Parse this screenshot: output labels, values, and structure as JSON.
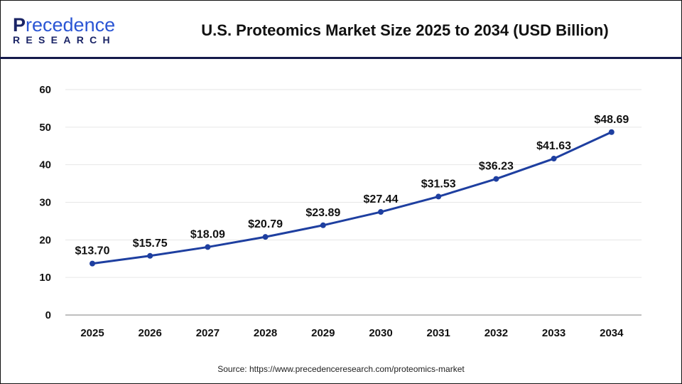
{
  "header": {
    "logo_text": "Precedence Research",
    "logo_line1_initial": "P",
    "logo_line1_rest": "recedence",
    "logo_line2": "RESEARCH",
    "title": "U.S. Proteomics Market Size 2025 to 2034 (USD Billion)"
  },
  "source": "Source: https://www.precedenceresearch.com/proteomics-market",
  "colors": {
    "line": "#1e3fa0",
    "grid": "#e6e6e6",
    "header_rule": "#141a4a"
  },
  "chart_data": {
    "type": "line",
    "title": "U.S. Proteomics Market Size 2025 to 2034 (USD Billion)",
    "categories": [
      "2025",
      "2026",
      "2027",
      "2028",
      "2029",
      "2030",
      "2031",
      "2032",
      "2033",
      "2034"
    ],
    "values": [
      13.7,
      15.75,
      18.09,
      20.79,
      23.89,
      27.44,
      31.53,
      36.23,
      41.63,
      48.69
    ],
    "data_labels": [
      "$13.70",
      "$15.75",
      "$18.09",
      "$20.79",
      "$23.89",
      "$27.44",
      "$31.53",
      "$36.23",
      "$41.63",
      "$48.69"
    ],
    "yticks": [
      "0",
      "10",
      "20",
      "30",
      "40",
      "50",
      "60"
    ],
    "ylim": [
      0,
      60
    ],
    "grid": true,
    "legend": "none"
  }
}
